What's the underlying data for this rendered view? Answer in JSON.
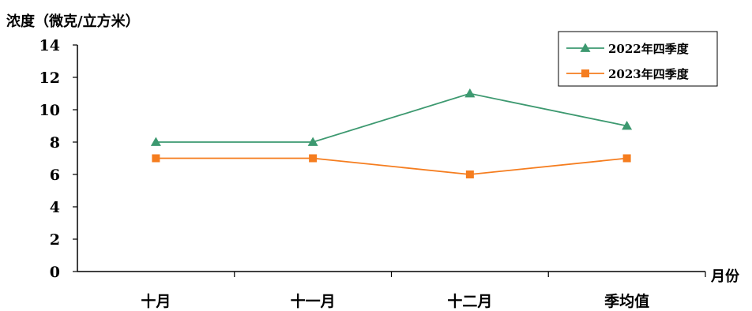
{
  "chart_data": {
    "type": "line",
    "ylabel": "浓度（微克/立方米）",
    "xlabel": "月份",
    "categories": [
      "十月",
      "十一月",
      "十二月",
      "季均值"
    ],
    "ylim": [
      0,
      14
    ],
    "yticks": [
      0,
      2,
      4,
      6,
      8,
      10,
      12,
      14
    ],
    "grid": false,
    "legend_position": "top-right",
    "series": [
      {
        "name": "2022年四季度",
        "values": [
          8,
          8,
          11,
          9
        ],
        "color": "#3d9970",
        "marker": "triangle"
      },
      {
        "name": "2023年四季度",
        "values": [
          7,
          7,
          6,
          7
        ],
        "color": "#f57d1f",
        "marker": "square"
      }
    ]
  }
}
